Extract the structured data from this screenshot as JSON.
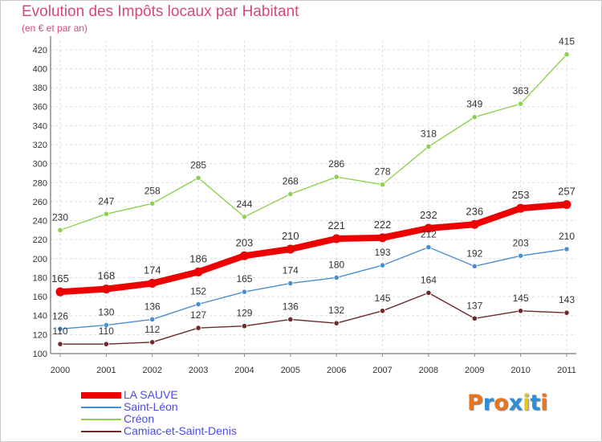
{
  "title": "Evolution des Impôts locaux par Habitant",
  "subtitle": "(en € et par an)",
  "logo": {
    "text": "Proxiti",
    "colors": [
      "#e8741d",
      "#2e8fd6",
      "#e8741d",
      "#2e8fd6",
      "#e8c21d",
      "#2e8fd6",
      "#e8741d"
    ]
  },
  "chart_data": {
    "type": "line",
    "title": "Evolution des Impôts locaux par Habitant",
    "subtitle": "(en € et par an)",
    "xlabel": "",
    "ylabel": "",
    "ylim": [
      100,
      430
    ],
    "yticks": [
      100,
      120,
      140,
      160,
      180,
      200,
      220,
      240,
      260,
      280,
      300,
      320,
      340,
      360,
      380,
      400,
      420
    ],
    "grid": true,
    "legend_position": "bottom-left",
    "x": [
      "2000",
      "2001",
      "2002",
      "2003",
      "2004",
      "2005",
      "2006",
      "2007",
      "2008",
      "2009",
      "2010",
      "2011"
    ],
    "series": [
      {
        "name": "Créon",
        "color": "#8fd151",
        "values": [
          230,
          247,
          258,
          285,
          244,
          268,
          286,
          278,
          318,
          349,
          363,
          415
        ]
      },
      {
        "name": "Saint-Léon",
        "color": "#4a8fcd",
        "values": [
          126,
          130,
          136,
          152,
          165,
          174,
          180,
          193,
          212,
          192,
          203,
          210
        ]
      },
      {
        "name": "Camiac-et-Saint-Denis",
        "color": "#6b2a2a",
        "values": [
          110,
          110,
          112,
          127,
          129,
          136,
          132,
          145,
          164,
          137,
          145,
          143
        ]
      },
      {
        "name": "LA SAUVE",
        "color": "#ee0000",
        "values": [
          165,
          168,
          174,
          186,
          203,
          210,
          221,
          222,
          232,
          236,
          253,
          257
        ]
      }
    ],
    "legend_order": [
      "LA SAUVE",
      "Saint-Léon",
      "Créon",
      "Camiac-et-Saint-Denis"
    ]
  }
}
